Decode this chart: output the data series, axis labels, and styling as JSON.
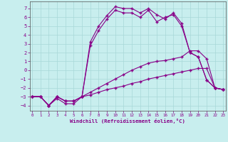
{
  "bg_color": "#c8eeee",
  "grid_color": "#a8d8d8",
  "line_color": "#880088",
  "xlim": [
    -0.3,
    23.3
  ],
  "ylim": [
    -4.6,
    7.8
  ],
  "xticks": [
    0,
    1,
    2,
    3,
    4,
    5,
    6,
    7,
    8,
    9,
    10,
    11,
    12,
    13,
    14,
    15,
    16,
    17,
    18,
    19,
    20,
    21,
    22,
    23
  ],
  "yticks": [
    -4,
    -3,
    -2,
    -1,
    0,
    1,
    2,
    3,
    4,
    5,
    6,
    7
  ],
  "xlabel": "Windchill (Refroidissement éolien,°C)",
  "lines": [
    {
      "x": [
        0,
        1,
        2,
        3,
        4,
        5,
        6,
        7,
        8,
        9,
        10,
        11,
        12,
        13,
        14,
        15,
        16,
        17,
        18,
        19,
        20,
        21,
        22,
        23
      ],
      "y": [
        -3.0,
        -3.0,
        -4.0,
        -3.0,
        -3.5,
        -3.5,
        -3.0,
        3.2,
        5.0,
        6.2,
        7.2,
        7.0,
        7.0,
        6.5,
        7.0,
        6.3,
        5.8,
        6.5,
        5.3,
        2.0,
        1.5,
        -1.1,
        -2.0,
        -2.2
      ]
    },
    {
      "x": [
        0,
        1,
        2,
        3,
        4,
        5,
        6,
        7,
        8,
        9,
        10,
        11,
        12,
        13,
        14,
        15,
        16,
        17,
        18,
        19,
        20,
        21,
        22,
        23
      ],
      "y": [
        -3.0,
        -3.0,
        -4.0,
        -3.0,
        -3.5,
        -3.5,
        -3.0,
        2.8,
        4.5,
        5.8,
        6.8,
        6.5,
        6.5,
        6.0,
        6.8,
        5.5,
        6.0,
        6.3,
        5.0,
        2.0,
        1.5,
        -1.1,
        -2.0,
        -2.2
      ]
    },
    {
      "x": [
        0,
        1,
        2,
        3,
        4,
        5,
        6,
        7,
        8,
        9,
        10,
        11,
        12,
        13,
        14,
        15,
        16,
        17,
        18,
        19,
        20,
        21,
        22,
        23
      ],
      "y": [
        -3.0,
        -3.0,
        -4.0,
        -3.2,
        -3.8,
        -3.8,
        -3.0,
        -2.5,
        -2.0,
        -1.5,
        -1.0,
        -0.5,
        0.0,
        0.4,
        0.8,
        1.0,
        1.1,
        1.3,
        1.5,
        2.2,
        2.2,
        1.3,
        -2.0,
        -2.2
      ]
    },
    {
      "x": [
        0,
        1,
        2,
        3,
        4,
        5,
        6,
        7,
        8,
        9,
        10,
        11,
        12,
        13,
        14,
        15,
        16,
        17,
        18,
        19,
        20,
        21,
        22,
        23
      ],
      "y": [
        -3.0,
        -3.0,
        -4.0,
        -3.0,
        -3.5,
        -3.5,
        -3.0,
        -2.8,
        -2.5,
        -2.2,
        -2.0,
        -1.8,
        -1.5,
        -1.3,
        -1.0,
        -0.8,
        -0.6,
        -0.4,
        -0.2,
        0.0,
        0.2,
        0.2,
        -2.0,
        -2.2
      ]
    }
  ]
}
